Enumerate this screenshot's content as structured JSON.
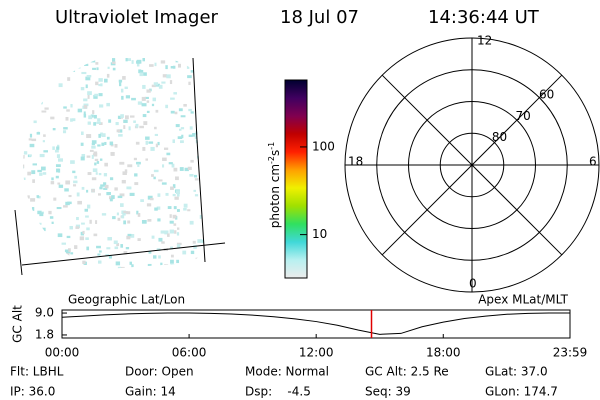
{
  "header": {
    "title": "Ultraviolet Imager",
    "date": "18 Jul 07",
    "time": "14:36:44 UT"
  },
  "colorbar": {
    "unit": "photon cm",
    "unit_exp1": "-2",
    "unit_mid": "s",
    "unit_exp2": "-1",
    "scale": "log",
    "clim": [
      3.2,
      580
    ],
    "ticks": [
      10,
      100
    ],
    "colors": [
      "#ececec",
      "#b8f0f0",
      "#40d8d8",
      "#30e060",
      "#a0e000",
      "#f0f000",
      "#ffa000",
      "#ff2000",
      "#c00000",
      "#800050",
      "#400060",
      "#000030"
    ]
  },
  "polar": {
    "labels": {
      "top": "12",
      "left": "18",
      "right": "6",
      "bottom": "0"
    },
    "rings": [
      80,
      70,
      60
    ],
    "rlim": [
      90,
      50
    ]
  },
  "timeline": {
    "left_title": "Geographic Lat/Lon",
    "right_title": "Apex MLat/MLT",
    "ylabel": "GC Alt",
    "x": [
      0,
      1,
      2,
      3,
      4,
      5,
      6,
      7,
      8,
      9,
      10,
      11,
      12,
      13,
      14,
      15,
      16,
      17,
      18,
      19,
      20,
      21,
      22,
      23,
      23.983
    ],
    "values": [
      7.6,
      8.0,
      8.4,
      8.7,
      8.9,
      9.0,
      9.0,
      8.9,
      8.7,
      8.3,
      7.8,
      7.1,
      6.2,
      5.0,
      3.4,
      2.0,
      2.3,
      4.5,
      6.0,
      7.2,
      8.0,
      8.6,
      8.9,
      9.0,
      9.0
    ],
    "xlim": [
      0,
      23.983
    ],
    "xticks": [
      {
        "value": 0,
        "label": "00:00"
      },
      {
        "value": 6,
        "label": "06:00"
      },
      {
        "value": 12,
        "label": "12:00"
      },
      {
        "value": 18,
        "label": "18:00"
      },
      {
        "value": 23.983,
        "label": "23:59"
      }
    ],
    "ylim": [
      0.8,
      10
    ],
    "yticks": [
      {
        "value": 9,
        "label": "9.0"
      },
      1.8
    ],
    "marker": 14.612,
    "marker_color": "#e00000"
  },
  "info": [
    [
      "Flt: LBHL",
      "Door: Open",
      "Mode: Normal",
      "GC Alt: 2.5 Re",
      "GLat: 37.0"
    ],
    [
      "IP: 36.0",
      "Gain: 14",
      "Dsp:    -4.5",
      "Seq: 39",
      "GLon: 174.7"
    ]
  ]
}
